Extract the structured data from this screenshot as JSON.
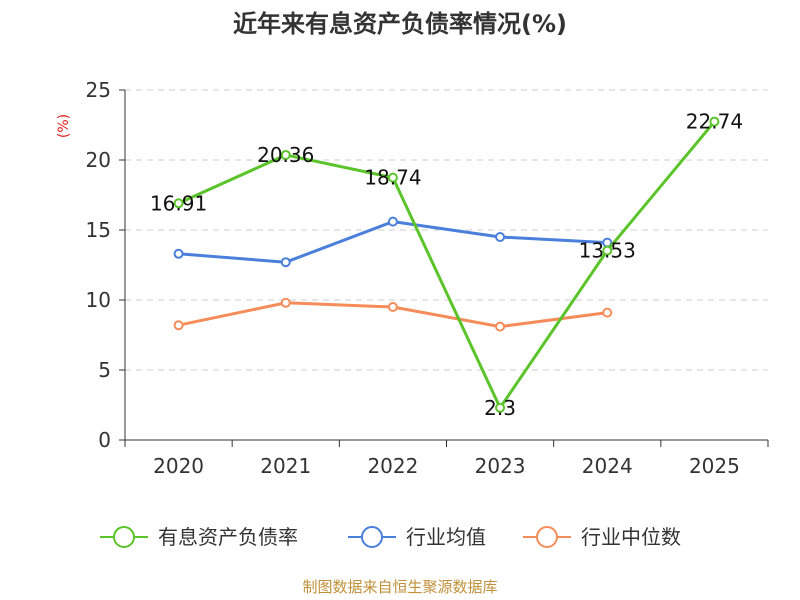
{
  "chart_data": {
    "type": "line",
    "title": "近年来有息资产负债率情况(%)",
    "ylabel": "(%)",
    "xlabel": "",
    "categories": [
      "2020",
      "2021",
      "2022",
      "2023",
      "2024",
      "2025"
    ],
    "ylim": [
      0,
      25
    ],
    "yticks": [
      0,
      5,
      10,
      15,
      20,
      25
    ],
    "grid": true,
    "legend_position": "bottom",
    "series": [
      {
        "name": "有息资产负债率",
        "color": "#5bc42a",
        "values": [
          16.91,
          20.36,
          18.74,
          2.3,
          13.53,
          22.74
        ],
        "labels": [
          "16.91",
          "20.36",
          "18.74",
          "2.3",
          "13.53",
          "22.74"
        ]
      },
      {
        "name": "行业均值",
        "color": "#4a7fdb",
        "values": [
          13.3,
          12.7,
          15.6,
          14.5,
          14.1,
          null
        ]
      },
      {
        "name": "行业中位数",
        "color": "#f58c5a",
        "values": [
          8.2,
          9.8,
          9.5,
          8.1,
          9.1,
          null
        ]
      }
    ]
  },
  "source": "制图数据来自恒生聚源数据库"
}
